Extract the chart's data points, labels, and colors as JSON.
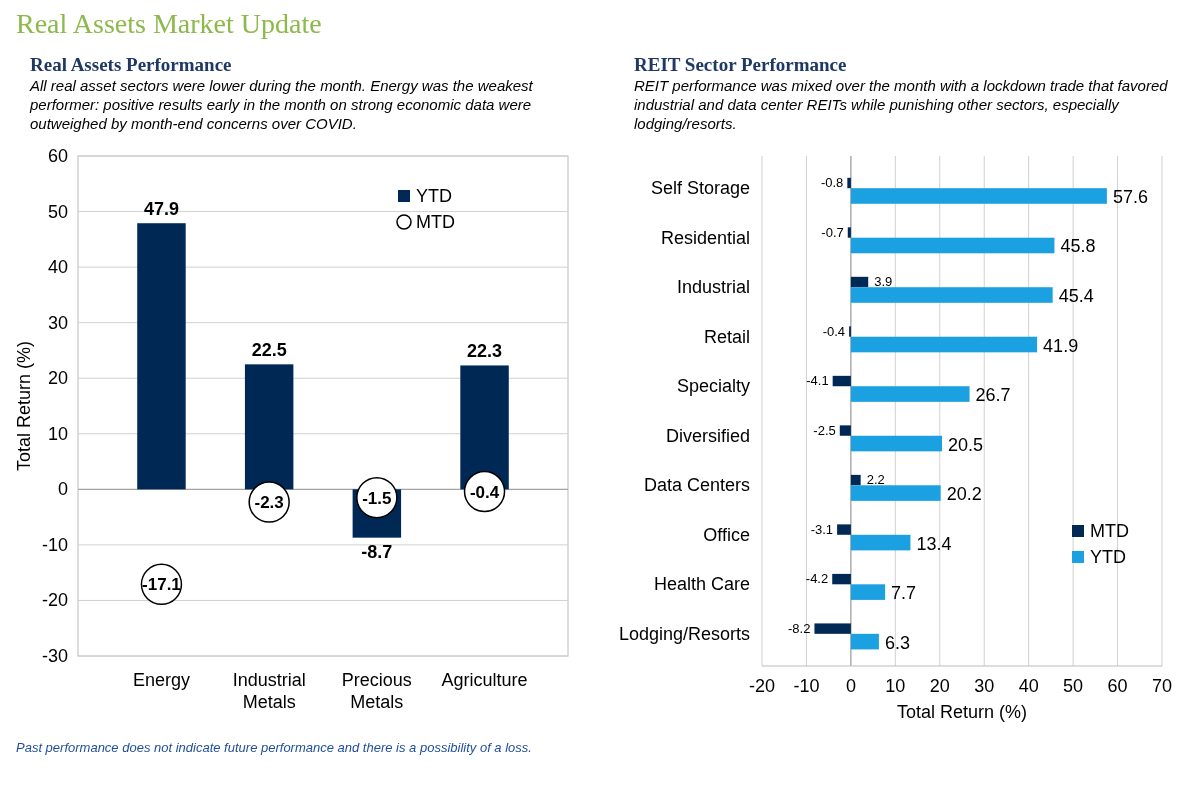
{
  "chart_data": [
    {
      "type": "bar",
      "title": "Real Assets Performance",
      "subtitle": "All real asset sectors were lower during the month. Energy was the weakest performer: positive results early in the month on strong economic data were outweighed by month-end concerns over COVID.",
      "annotations": [
        "Real Assets Market Update"
      ],
      "ylabel": "Total Return (%)",
      "categories": [
        "Energy",
        "Industrial Metals",
        "Precious Metals",
        "Agriculture"
      ],
      "series": [
        {
          "name": "YTD",
          "color": "#002855",
          "values": [
            47.9,
            22.5,
            -8.7,
            22.3
          ]
        },
        {
          "name": "MTD",
          "type": "scatter",
          "marker": "circle",
          "color": "#ffffff",
          "values": [
            -17.1,
            -2.3,
            -1.5,
            -0.4
          ]
        }
      ],
      "ylim": [
        -30,
        60
      ],
      "yticks": [
        -30,
        -20,
        -10,
        0,
        10,
        20,
        30,
        40,
        50,
        60
      ],
      "grid": "y",
      "legend": "top right",
      "data_labels": true
    },
    {
      "type": "bar",
      "orientation": "horizontal",
      "title": "REIT Sector Performance",
      "subtitle": "REIT performance was mixed over the month with a lockdown trade that favored industrial and data center REITs while punishing other sectors, especially lodging/resorts.",
      "annotations": [
        "Past performance does not indicate future performance and there is a possibility of a loss."
      ],
      "xlabel": "Total Return (%)",
      "categories": [
        "Self Storage",
        "Residential",
        "Industrial",
        "Retail",
        "Specialty",
        "Diversified",
        "Data Centers",
        "Office",
        "Health Care",
        "Lodging/Resorts"
      ],
      "series": [
        {
          "name": "MTD",
          "color": "#002855",
          "values": [
            -0.8,
            -0.7,
            3.9,
            -0.4,
            -4.1,
            -2.5,
            2.2,
            -3.1,
            -4.2,
            -8.2
          ]
        },
        {
          "name": "YTD",
          "color": "#1ba1e2",
          "values": [
            57.6,
            45.8,
            45.4,
            41.9,
            26.7,
            20.5,
            20.2,
            13.4,
            7.7,
            6.3
          ]
        }
      ],
      "xlim": [
        -20,
        70
      ],
      "xticks": [
        -20,
        -10,
        0,
        10,
        20,
        30,
        40,
        50,
        60,
        70
      ],
      "grid": "x",
      "legend": "right",
      "data_labels": true
    }
  ]
}
